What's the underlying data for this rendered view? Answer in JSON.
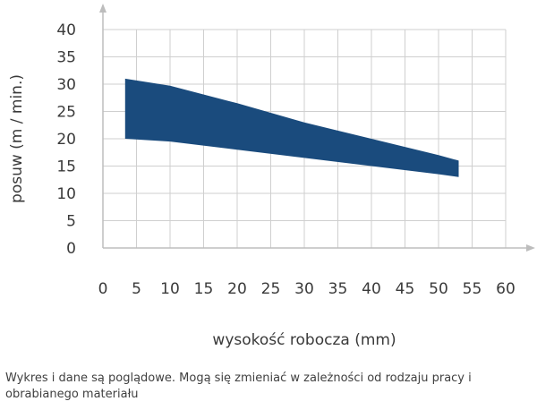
{
  "chart_data": {
    "type": "area",
    "title": "",
    "xlabel": "wysokość robocza (mm)",
    "ylabel": "posuw (m / min.)",
    "xlim": [
      0,
      60
    ],
    "ylim": [
      0,
      40
    ],
    "xticks": [
      0,
      5,
      10,
      15,
      20,
      25,
      30,
      35,
      40,
      45,
      50,
      55,
      60
    ],
    "xtick_labels": [
      "0",
      "5",
      "10",
      "15",
      "20",
      "25",
      "30",
      "35",
      "40",
      "45",
      "50",
      "55",
      "60"
    ],
    "yticks": [
      0,
      5,
      10,
      15,
      20,
      25,
      30,
      35,
      40
    ],
    "ytick_labels": [
      "0",
      "5",
      "10",
      "15",
      "20",
      "25",
      "30",
      "35",
      "40"
    ],
    "grid": true,
    "fill_color": "#1a4b7d",
    "series": [
      {
        "upper": {
          "x": [
            3.3,
            10,
            20,
            30,
            40,
            50,
            53
          ],
          "y": [
            31,
            29.7,
            26.5,
            23,
            20,
            17,
            16
          ]
        },
        "lower": {
          "x": [
            3.3,
            10,
            20,
            30,
            40,
            50,
            53
          ],
          "y": [
            20,
            19.5,
            18,
            16.5,
            15,
            13.5,
            13
          ]
        }
      }
    ]
  },
  "footnote": "Wykres i dane są poglądowe. Mogą się zmieniać w zależności od rodzaju pracy i obrabianego materiału"
}
